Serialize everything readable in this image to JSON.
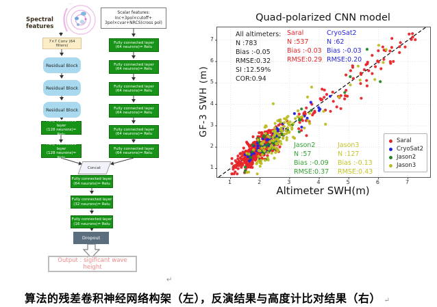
{
  "figure": {
    "caption": "算法的残差卷积神经网络构架（左），反演结果与高度计比对结果（右）",
    "return_mark": "↵"
  },
  "diagram": {
    "spectral_label": "Spectral\nfeatures",
    "scalar_label": "Scalar features:\nInc+3pol×cutoff+\n3pol×cvar+NRCS(cross pol)",
    "conv_label": "7×7 Conv (64 filters)",
    "residual_label": "Residual Block",
    "fc128_label": "Fully connected layer\n(128 neurons)= Relu",
    "fc64_label": "Fully connected layer\n(64 neurons)= Relu",
    "fc32_label": "Fully connected layer\n(32 neurons)= Relu",
    "fc16_label": "Fully connected layer\n(16 neurons)= Relu",
    "concat_label": "Concat",
    "dropout_label": "Dropout",
    "output_label": "Output : sigificant wave height",
    "colors": {
      "fc_green": "#179417",
      "residual_blue": "#a9d9ee",
      "conv_cream": "#fbeec6",
      "dropout_slate": "#5b6e80",
      "output_text": "#f08a8a"
    }
  },
  "chart_data": {
    "type": "scatter",
    "title": "Quad-polarized CNN model",
    "xlabel": "Altimeter SWH(m)",
    "ylabel": "GF-3 SWH (m)",
    "xlim": [
      0.55,
      7.75
    ],
    "ylim": [
      0.6,
      7.6
    ],
    "xticks": [
      1,
      2,
      3,
      4,
      5,
      6,
      7
    ],
    "yticks": [
      1,
      2,
      3,
      4,
      5,
      6,
      7
    ],
    "grid": true,
    "identity_line": {
      "from": 0.6,
      "to": 7.6,
      "style": "dashed",
      "color": "#000000"
    },
    "legend_position": "lower right",
    "series": [
      {
        "name": "Saral",
        "color": "#e62528",
        "n": 537,
        "bias": -0.03,
        "rmse": 0.29
      },
      {
        "name": "CryoSat2",
        "color": "#2222dd",
        "n": 62,
        "bias": -0.03,
        "rmse": 0.2
      },
      {
        "name": "Jason2",
        "color": "#218521",
        "n": 57,
        "bias": -0.09,
        "rmse": 0.37
      },
      {
        "name": "Jason3",
        "color": "#bcbd22",
        "n": 127,
        "bias": -0.13,
        "rmse": 0.43
      }
    ],
    "overall_stats": {
      "n": 783,
      "bias": -0.05,
      "rmse": 0.32,
      "si": "12.59%",
      "cor": 0.94
    },
    "stats_blocks": [
      {
        "id": "all",
        "color": "#1c1c1c",
        "lines": "All altimeters:\nN :783\nBias :-0.05\nRMSE:0.32\nSI :12.59%\nCOR:0.94"
      },
      {
        "id": "saral",
        "color": "#e62528",
        "lines": "Saral\nN :537\nBias :-0.03\nRMSE:0.29"
      },
      {
        "id": "cryosat2",
        "color": "#2525dd",
        "lines": "CryoSat2\nN :62\nBias :-0.03\nRMSE:0.20"
      },
      {
        "id": "jason2",
        "color": "#35a035",
        "lines": "Jason2\nN :57\nBias :-0.09\nRMSE:0.37"
      },
      {
        "id": "jason3",
        "color": "#c3c428",
        "lines": "Jason3\nN :127\nBias :-0.13\nRMSE:0.43"
      }
    ]
  }
}
